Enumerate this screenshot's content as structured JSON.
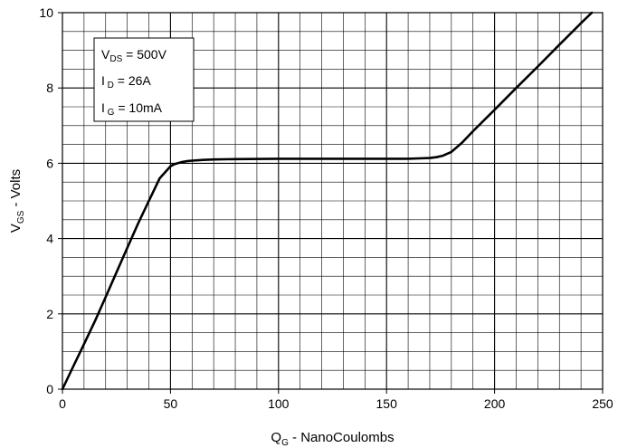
{
  "chart_data": {
    "type": "line",
    "title": "",
    "xlabel": {
      "main": "Q",
      "sub": "G",
      "rest": " - NanoCoulombs"
    },
    "ylabel": {
      "main": "V",
      "sub": "GS",
      "rest": " - Volts"
    },
    "xlim": [
      0,
      250
    ],
    "ylim": [
      0,
      10
    ],
    "x_major_ticks": [
      0,
      50,
      100,
      150,
      200,
      250
    ],
    "y_major_ticks": [
      0,
      2,
      4,
      6,
      8,
      10
    ],
    "x_tick_labels": [
      "0",
      "50",
      "100",
      "150",
      "200",
      "250"
    ],
    "y_tick_labels": [
      "0",
      "2",
      "4",
      "6",
      "8",
      "10"
    ],
    "grid": "major and minor",
    "annotation": {
      "placement": "top-left",
      "lines": [
        {
          "main": "V",
          "sub": "DS",
          "rest": " = 500V"
        },
        {
          "main": "I",
          "sub": " D",
          "rest": " = 26A"
        },
        {
          "main": "I",
          "sub": " G",
          "rest": " = 10mA"
        }
      ]
    },
    "series": [
      {
        "x": [
          0,
          5,
          10,
          15,
          20,
          25,
          30,
          35,
          40,
          45,
          50,
          52,
          55,
          58,
          60,
          65,
          70,
          80,
          100,
          120,
          140,
          160,
          165,
          170,
          173,
          176,
          180,
          185,
          190,
          200,
          210,
          220,
          230,
          240,
          245
        ],
        "y": [
          0,
          0.6,
          1.2,
          1.8,
          2.45,
          3.1,
          3.75,
          4.4,
          5.0,
          5.6,
          5.92,
          5.98,
          6.03,
          6.06,
          6.07,
          6.09,
          6.1,
          6.11,
          6.12,
          6.12,
          6.12,
          6.12,
          6.13,
          6.14,
          6.16,
          6.2,
          6.3,
          6.55,
          6.85,
          7.42,
          8.0,
          8.57,
          9.15,
          9.72,
          10.0
        ]
      }
    ]
  }
}
